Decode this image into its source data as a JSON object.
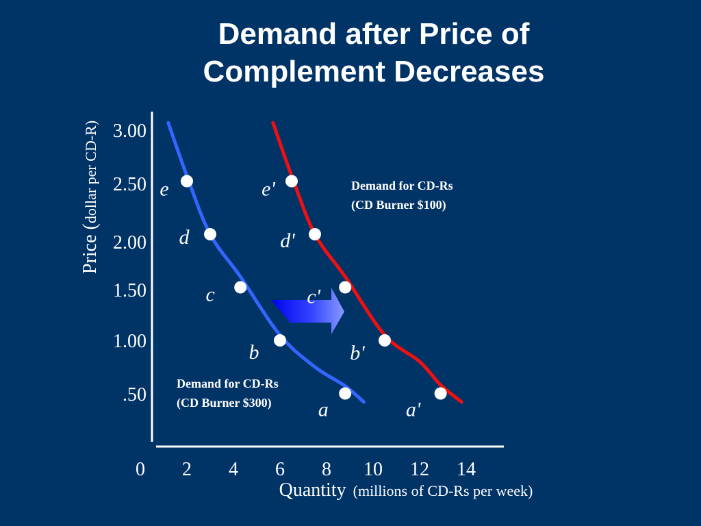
{
  "title_lines": [
    "Demand after Price of",
    "Complement Decreases"
  ],
  "chart_data": {
    "type": "line",
    "xlabel_main": "Quantity",
    "xlabel_sub": "(millions of CD-Rs per week)",
    "ylabel_main": "Price (",
    "ylabel_sub": "dollar per CD-R)",
    "x_ticks": [
      "0",
      "2",
      "4",
      "6",
      "8",
      "10",
      "12",
      "14"
    ],
    "y_ticks": [
      "3.00",
      "2.50",
      "2.00",
      "1.50",
      "1.00",
      ".50"
    ],
    "xlim": [
      0,
      15
    ],
    "ylim": [
      0,
      3.25
    ],
    "series": [
      {
        "name": "Demand for CD-Rs (CD Burner $300)",
        "label_lines": [
          "Demand for CD-Rs",
          "(CD Burner $300)"
        ],
        "color": "#3366ff",
        "curve": [
          [
            1.2,
            3.05
          ],
          [
            2.0,
            2.55
          ],
          [
            3.0,
            2.0
          ],
          [
            4.3,
            1.6
          ],
          [
            6.0,
            1.05
          ],
          [
            7.5,
            0.75
          ],
          [
            8.8,
            0.57
          ],
          [
            9.6,
            0.42
          ]
        ],
        "points": [
          {
            "label": "a",
            "x": 8.8,
            "y": 0.5
          },
          {
            "label": "b",
            "x": 6.0,
            "y": 1.0
          },
          {
            "label": "c",
            "x": 4.3,
            "y": 1.5
          },
          {
            "label": "d",
            "x": 3.0,
            "y": 2.0
          },
          {
            "label": "e",
            "x": 2.0,
            "y": 2.5
          }
        ]
      },
      {
        "name": "Demand for CD-Rs (CD Burner $100)",
        "label_lines": [
          "Demand for CD-Rs",
          "(CD Burner $100)"
        ],
        "color": "#ee1111",
        "curve": [
          [
            5.7,
            3.05
          ],
          [
            6.5,
            2.55
          ],
          [
            7.5,
            2.0
          ],
          [
            8.8,
            1.6
          ],
          [
            10.5,
            1.05
          ],
          [
            12.0,
            0.8
          ],
          [
            12.9,
            0.58
          ],
          [
            13.8,
            0.42
          ]
        ],
        "points": [
          {
            "label": "a'",
            "x": 12.9,
            "y": 0.5
          },
          {
            "label": "b'",
            "x": 10.5,
            "y": 1.0
          },
          {
            "label": "c'",
            "x": 8.8,
            "y": 1.5
          },
          {
            "label": "d'",
            "x": 7.5,
            "y": 2.0
          },
          {
            "label": "e'",
            "x": 6.5,
            "y": 2.5
          }
        ]
      }
    ],
    "annotation": "rightward shift arrow"
  }
}
